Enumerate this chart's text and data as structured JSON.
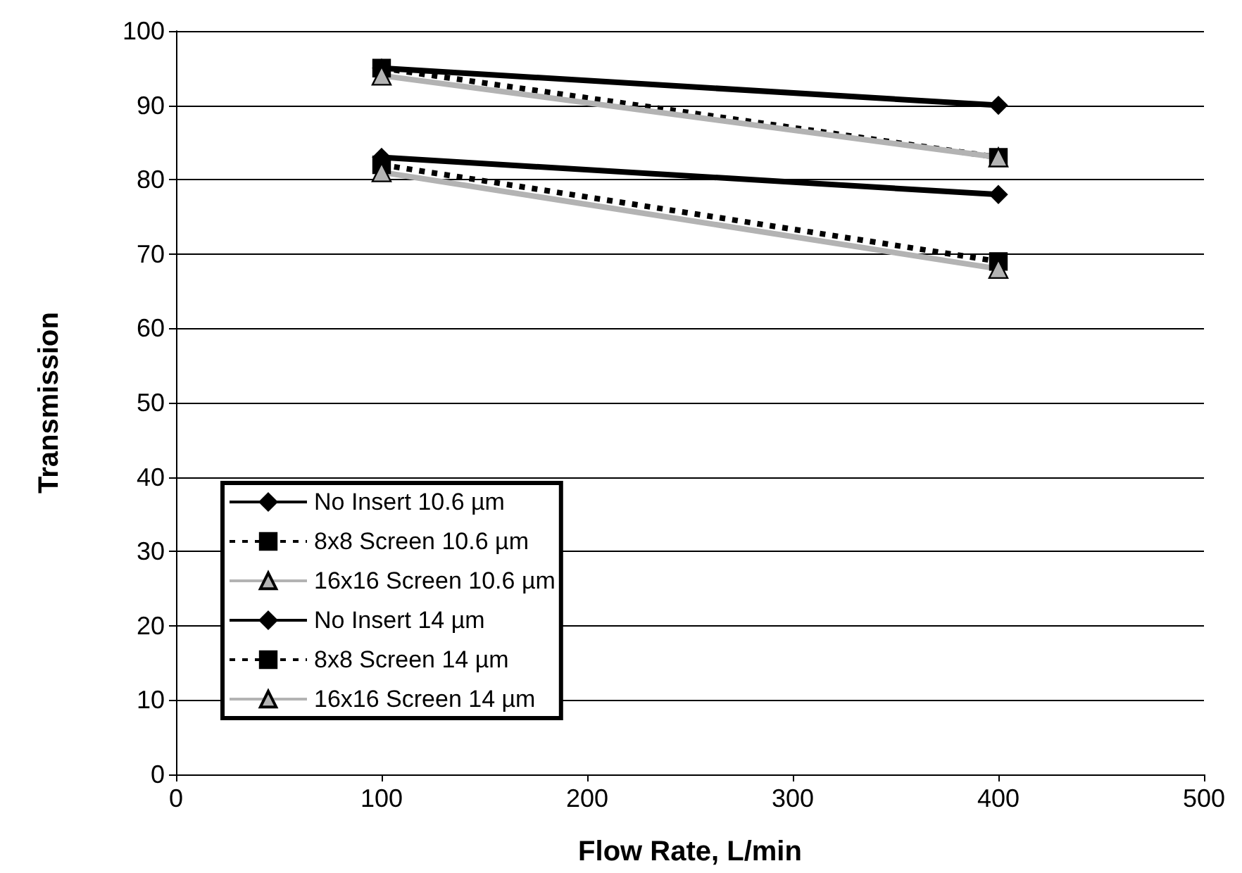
{
  "chart_data": {
    "type": "line",
    "xlabel": "Flow Rate, L/min",
    "ylabel": "Transmission",
    "x": [
      100,
      400
    ],
    "xlim": [
      0,
      500
    ],
    "xticks": [
      0,
      100,
      200,
      300,
      400,
      500
    ],
    "ylim": [
      0,
      100
    ],
    "yticks": [
      0,
      10,
      20,
      30,
      40,
      50,
      60,
      70,
      80,
      90,
      100
    ],
    "grid": "y",
    "legend": "bottom left",
    "series": [
      {
        "name": "No Insert 10.6 µm",
        "values": [
          95,
          90
        ],
        "color": "#000000",
        "marker": "diamond",
        "line_style": "solid"
      },
      {
        "name": "8x8 Screen 10.6 µm",
        "values": [
          95,
          83
        ],
        "color": "#000000",
        "marker": "square",
        "line_style": "dashed"
      },
      {
        "name": "16x16 Screen 10.6 µm",
        "values": [
          94,
          83
        ],
        "color": "#b3b3b3",
        "marker": "triangle",
        "line_style": "solid"
      },
      {
        "name": "No Insert 14 µm",
        "values": [
          83,
          78
        ],
        "color": "#000000",
        "marker": "diamond",
        "line_style": "solid"
      },
      {
        "name": "8x8 Screen 14 µm",
        "values": [
          82,
          69
        ],
        "color": "#000000",
        "marker": "square",
        "line_style": "dashed"
      },
      {
        "name": "16x16 Screen 14 µm",
        "values": [
          81,
          68
        ],
        "color": "#b3b3b3",
        "marker": "triangle",
        "line_style": "solid"
      }
    ]
  }
}
